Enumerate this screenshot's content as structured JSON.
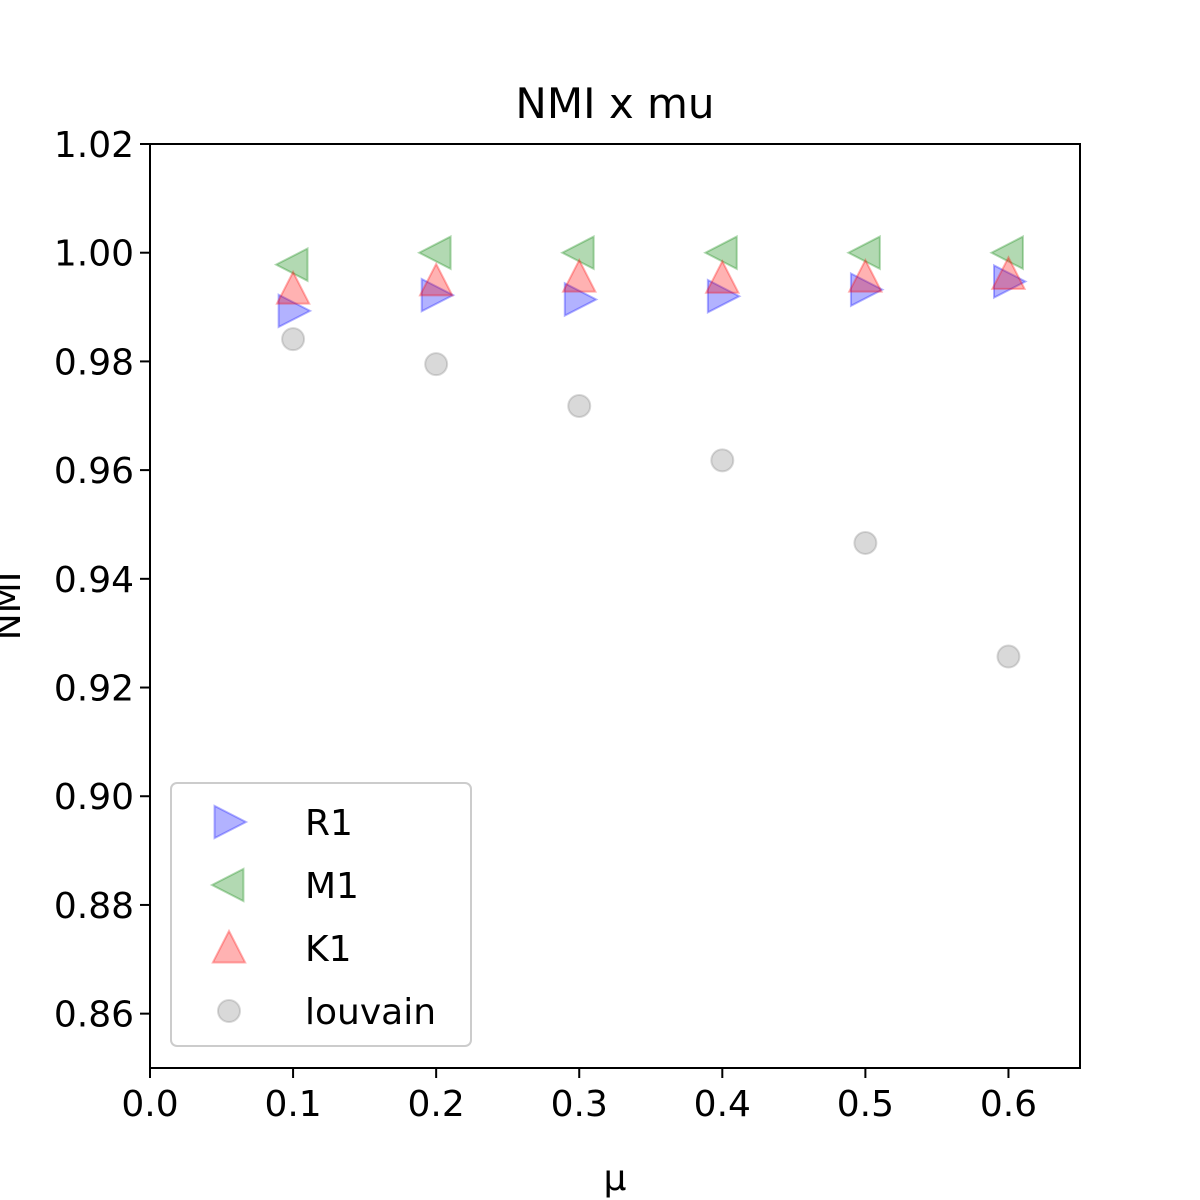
{
  "chart_data": {
    "type": "scatter",
    "title": "NMI x mu",
    "xlabel": "μ",
    "ylabel": "NMI",
    "xlim": [
      0.0,
      0.65
    ],
    "ylim": [
      0.85,
      1.02
    ],
    "xticks": [
      "0.0",
      "0.1",
      "0.2",
      "0.3",
      "0.4",
      "0.5",
      "0.6"
    ],
    "yticks": [
      "0.86",
      "0.88",
      "0.90",
      "0.92",
      "0.94",
      "0.96",
      "0.98",
      "1.00",
      "1.02"
    ],
    "grid": false,
    "legend_position": "lower-left",
    "series": [
      {
        "name": "R1",
        "marker": "triangle-right",
        "color": "#0000ff",
        "x": [
          0.1,
          0.2,
          0.3,
          0.4,
          0.5,
          0.6
        ],
        "y": [
          0.9893,
          0.9922,
          0.9914,
          0.992,
          0.9932,
          0.9947
        ]
      },
      {
        "name": "M1",
        "marker": "triangle-left",
        "color": "#008000",
        "x": [
          0.1,
          0.2,
          0.3,
          0.4,
          0.5,
          0.6
        ],
        "y": [
          0.9978,
          1.0,
          1.0,
          1.0,
          1.0,
          1.0
        ]
      },
      {
        "name": "K1",
        "marker": "triangle-up",
        "color": "#ff0000",
        "x": [
          0.1,
          0.2,
          0.3,
          0.4,
          0.5,
          0.6
        ],
        "y": [
          0.9933,
          0.9948,
          0.9955,
          0.9953,
          0.9955,
          0.996
        ]
      },
      {
        "name": "louvain",
        "marker": "circle",
        "color": "#808080",
        "x": [
          0.1,
          0.2,
          0.3,
          0.4,
          0.5,
          0.6
        ],
        "y": [
          0.9841,
          0.9795,
          0.9718,
          0.9618,
          0.9466,
          0.9257
        ]
      }
    ]
  }
}
